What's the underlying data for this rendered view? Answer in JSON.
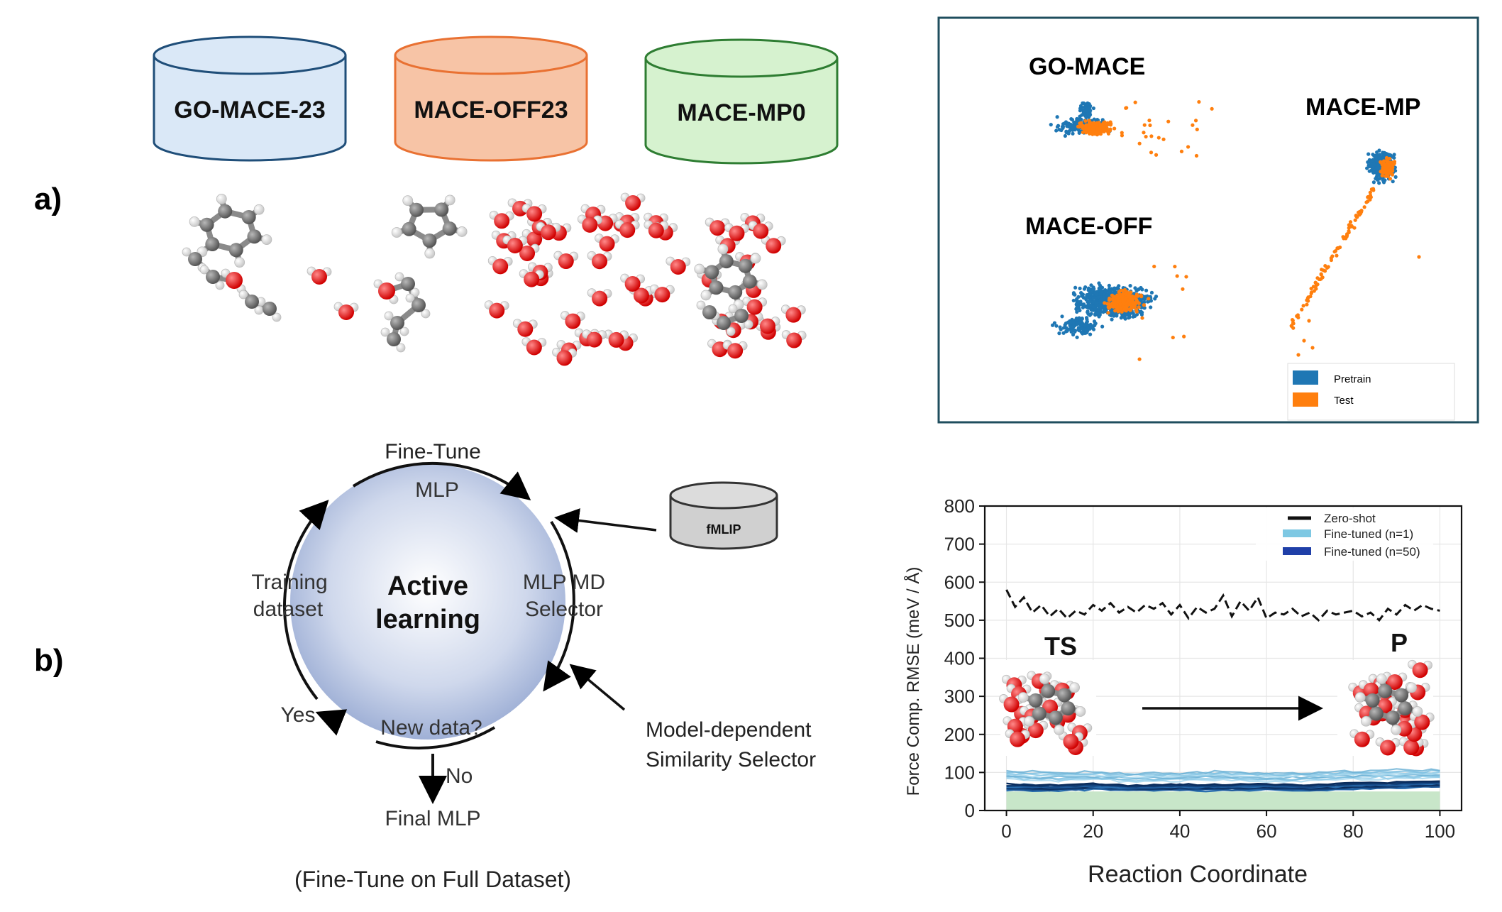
{
  "panel_labels": {
    "a": "a)",
    "b": "b)"
  },
  "datasets": [
    {
      "label": "GO-MACE-23",
      "fill": "#dae8f7",
      "stroke": "#1f4e79"
    },
    {
      "label": "MACE-OFF23",
      "fill": "#f7c4a6",
      "stroke": "#e97132"
    },
    {
      "label": "MACE-MP0",
      "fill": "#d6f2cf",
      "stroke": "#2e7d32"
    }
  ],
  "embedding_plot": {
    "cluster_labels": {
      "go_mace": "GO-MACE",
      "mace_off": "MACE-OFF",
      "mace_mp": "MACE-MP"
    },
    "legend": [
      {
        "label": "Pretrain",
        "color": "#1f77b4"
      },
      {
        "label": "Test",
        "color": "#ff7f0e"
      }
    ],
    "frame_color": "#1f4e5e"
  },
  "active_learning": {
    "center_line1": "Active",
    "center_line2": "learning",
    "top_label": "Fine-Tune",
    "mlp": "MLP",
    "md_line1": "MLP MD",
    "md_line2": "Selector",
    "train_line1": "Training",
    "train_line2": "dataset",
    "yes": "Yes",
    "new_data": "New data?",
    "no": "No",
    "final": "Final MLP",
    "fmlip": "fMLIP",
    "selector_line1": "Model-dependent",
    "selector_line2": "Similarity Selector",
    "caption": "(Fine-Tune on Full Dataset)"
  },
  "chart_data": {
    "type": "line",
    "xlabel": "Reaction Coordinate",
    "ylabel": "Force Comp. RMSE (meV / Å)",
    "xlim": [
      -5,
      105
    ],
    "ylim": [
      0,
      800
    ],
    "xticks": [
      0,
      20,
      40,
      60,
      80,
      100
    ],
    "yticks": [
      0,
      100,
      200,
      300,
      400,
      500,
      600,
      700,
      800
    ],
    "grid": true,
    "legend_position": "top-right",
    "annotations": {
      "ts": "TS",
      "p": "P"
    },
    "series": [
      {
        "name": "Zero-shot",
        "color": "#111111",
        "style": "dashed",
        "x": [
          0,
          2,
          4,
          6,
          8,
          10,
          12,
          14,
          16,
          18,
          20,
          22,
          24,
          26,
          28,
          30,
          32,
          34,
          36,
          38,
          40,
          42,
          44,
          46,
          48,
          50,
          52,
          54,
          56,
          58,
          60,
          62,
          64,
          66,
          68,
          70,
          72,
          74,
          76,
          78,
          80,
          82,
          84,
          86,
          88,
          90,
          92,
          94,
          96,
          98,
          100
        ],
        "values": [
          580,
          535,
          560,
          520,
          540,
          510,
          530,
          505,
          525,
          515,
          540,
          525,
          545,
          520,
          535,
          520,
          540,
          530,
          545,
          515,
          540,
          505,
          535,
          520,
          530,
          565,
          510,
          550,
          525,
          560,
          505,
          520,
          515,
          530,
          510,
          520,
          500,
          525,
          515,
          520,
          525,
          510,
          520,
          500,
          530,
          515,
          540,
          525,
          540,
          530,
          525
        ]
      },
      {
        "name": "Fine-tuned (n=1)",
        "color": "#7ec8e3",
        "style": "band",
        "x": [
          0,
          10,
          20,
          30,
          40,
          50,
          60,
          70,
          80,
          90,
          100
        ],
        "values": [
          95,
          90,
          92,
          88,
          90,
          93,
          89,
          91,
          94,
          96,
          98
        ]
      },
      {
        "name": "Fine-tuned (n=50)",
        "color": "#1f3fa8",
        "style": "band",
        "x": [
          0,
          10,
          20,
          30,
          40,
          50,
          60,
          70,
          80,
          90,
          100
        ],
        "values": [
          60,
          58,
          62,
          57,
          60,
          59,
          61,
          58,
          63,
          65,
          68
        ]
      }
    ],
    "shaded_region": {
      "y": [
        0,
        50
      ],
      "color": "#c8e6c9"
    }
  }
}
